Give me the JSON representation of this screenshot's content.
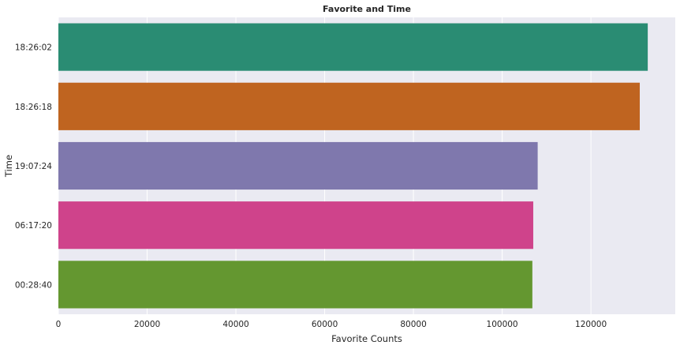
{
  "chart_data": {
    "type": "bar",
    "orientation": "horizontal",
    "title": "Favorite and Time",
    "xlabel": "Favorite Counts",
    "ylabel": "Time",
    "categories": [
      "18:26:02",
      "18:26:18",
      "19:07:24",
      "06:17:20",
      "00:28:40"
    ],
    "values": [
      132800,
      131000,
      108000,
      107000,
      106800
    ],
    "colors": [
      "#2a8c73",
      "#bf6420",
      "#7f78ad",
      "#cf438b",
      "#649730"
    ],
    "xlim": [
      0,
      139000
    ],
    "xticks": [
      0,
      20000,
      40000,
      60000,
      80000,
      100000,
      120000
    ],
    "xtick_labels": [
      "0",
      "20000",
      "40000",
      "60000",
      "80000",
      "100000",
      "120000"
    ],
    "grid": true,
    "legend": "none",
    "plot_background": "#eaeaf2",
    "grid_color": "#ffffff",
    "text_color": "#262626"
  }
}
